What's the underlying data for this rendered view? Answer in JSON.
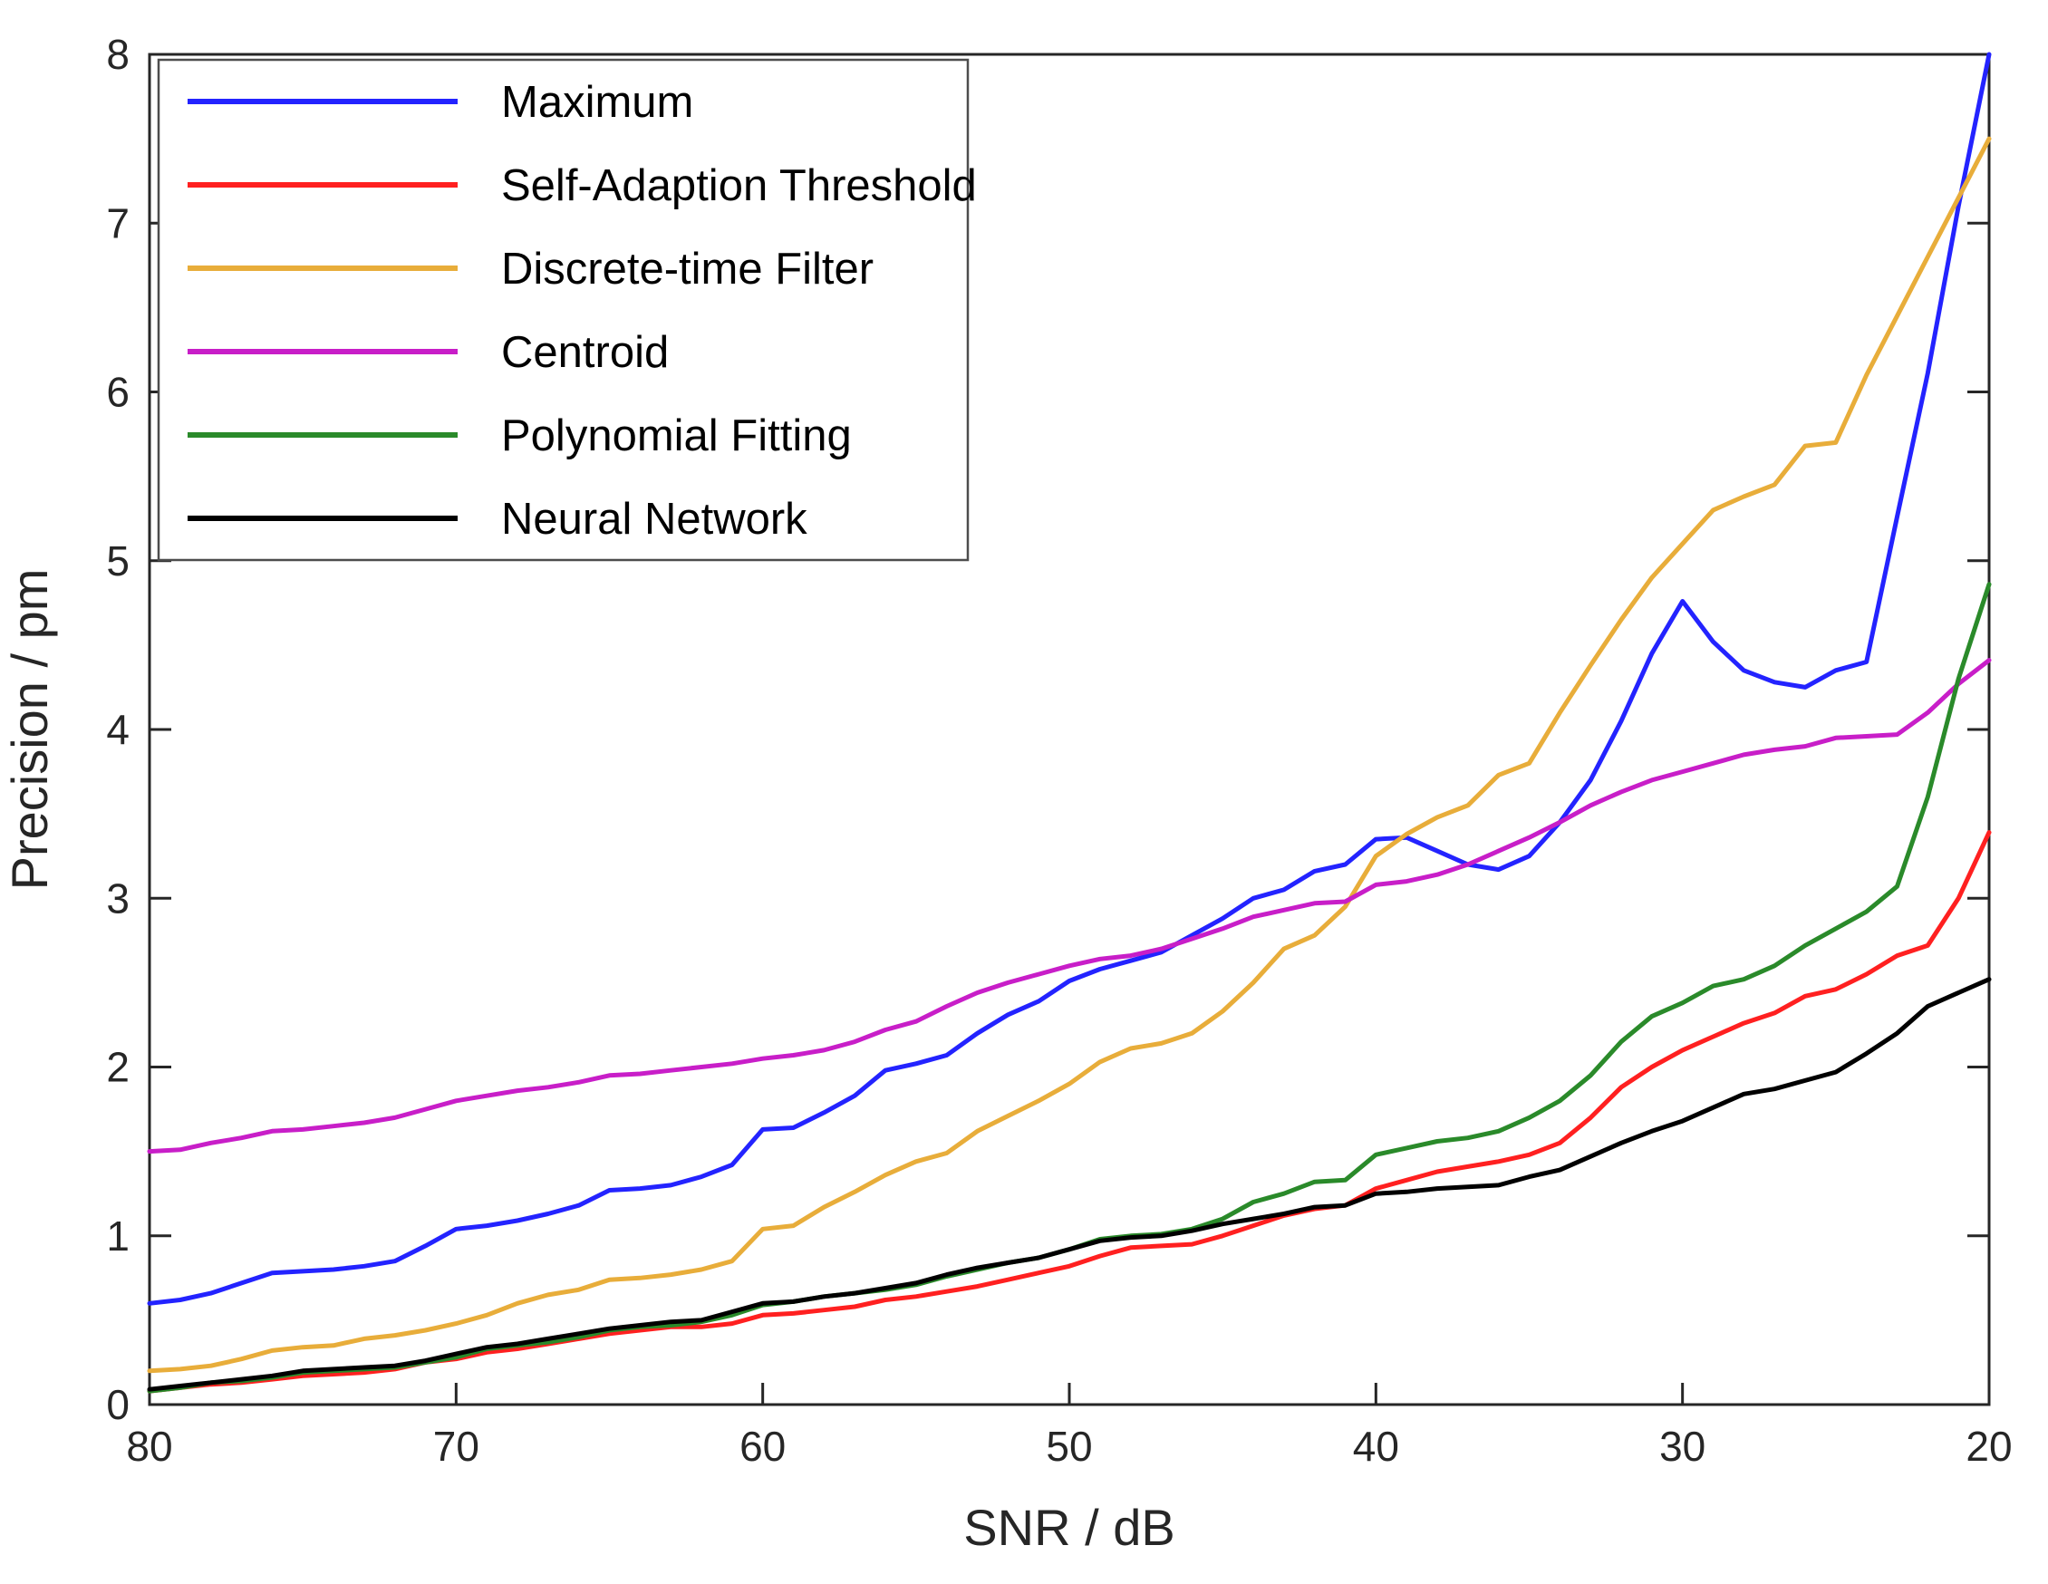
{
  "chart_data": {
    "type": "line",
    "title": "",
    "xlabel": "SNR / dB",
    "ylabel": "Precision / pm",
    "xlim": [
      80,
      20
    ],
    "ylim": [
      0,
      8
    ],
    "x_axis_reversed": true,
    "grid": false,
    "legend_position": "top-left",
    "axis_color": "#262626",
    "x_ticks": [
      80,
      70,
      60,
      50,
      40,
      30,
      20
    ],
    "y_ticks": [
      0,
      1,
      2,
      3,
      4,
      5,
      6,
      7,
      8
    ],
    "x": [
      80,
      79,
      78,
      77,
      76,
      75,
      74,
      73,
      72,
      71,
      70,
      69,
      68,
      67,
      66,
      65,
      64,
      63,
      62,
      61,
      60,
      59,
      58,
      57,
      56,
      55,
      54,
      53,
      52,
      51,
      50,
      49,
      48,
      47,
      46,
      45,
      44,
      43,
      42,
      41,
      40,
      39,
      38,
      37,
      36,
      35,
      34,
      33,
      32,
      31,
      30,
      29,
      28,
      27,
      26,
      25,
      24,
      23,
      22,
      21,
      20
    ],
    "series": [
      {
        "name": "Maximum",
        "color": "#2323ff",
        "values": [
          0.6,
          0.62,
          0.66,
          0.72,
          0.78,
          0.79,
          0.8,
          0.82,
          0.85,
          0.94,
          1.04,
          1.06,
          1.09,
          1.13,
          1.18,
          1.27,
          1.28,
          1.3,
          1.35,
          1.42,
          1.63,
          1.64,
          1.73,
          1.83,
          1.98,
          2.02,
          2.07,
          2.2,
          2.31,
          2.39,
          2.51,
          2.58,
          2.63,
          2.68,
          2.78,
          2.88,
          3.0,
          3.05,
          3.16,
          3.2,
          3.35,
          3.36,
          3.28,
          3.2,
          3.17,
          3.25,
          3.45,
          3.7,
          4.05,
          4.45,
          4.76,
          4.52,
          4.35,
          4.28,
          4.25,
          4.35,
          4.4,
          5.26,
          6.11,
          7.1,
          8.0
        ]
      },
      {
        "name": "Self-Adaption Threshold",
        "color": "#ff2020",
        "values": [
          0.08,
          0.1,
          0.12,
          0.13,
          0.15,
          0.17,
          0.18,
          0.19,
          0.21,
          0.25,
          0.27,
          0.31,
          0.33,
          0.36,
          0.39,
          0.42,
          0.44,
          0.46,
          0.46,
          0.48,
          0.53,
          0.54,
          0.56,
          0.58,
          0.62,
          0.64,
          0.67,
          0.7,
          0.74,
          0.78,
          0.82,
          0.88,
          0.93,
          0.94,
          0.95,
          1.0,
          1.06,
          1.12,
          1.16,
          1.18,
          1.28,
          1.33,
          1.38,
          1.41,
          1.44,
          1.48,
          1.55,
          1.7,
          1.88,
          2.0,
          2.1,
          2.18,
          2.26,
          2.32,
          2.42,
          2.46,
          2.55,
          2.66,
          2.72,
          3.0,
          3.39
        ]
      },
      {
        "name": "Discrete-time Filter",
        "color": "#e8ad3a",
        "values": [
          0.2,
          0.21,
          0.23,
          0.27,
          0.32,
          0.34,
          0.35,
          0.39,
          0.41,
          0.44,
          0.48,
          0.53,
          0.6,
          0.65,
          0.68,
          0.74,
          0.75,
          0.77,
          0.8,
          0.85,
          1.04,
          1.06,
          1.17,
          1.26,
          1.36,
          1.44,
          1.49,
          1.62,
          1.71,
          1.8,
          1.9,
          2.03,
          2.11,
          2.14,
          2.2,
          2.33,
          2.5,
          2.7,
          2.78,
          2.95,
          3.25,
          3.38,
          3.48,
          3.55,
          3.73,
          3.8,
          4.1,
          4.38,
          4.65,
          4.9,
          5.1,
          5.3,
          5.38,
          5.45,
          5.68,
          5.7,
          6.1,
          6.45,
          6.8,
          7.15,
          7.5
        ]
      },
      {
        "name": "Centroid",
        "color": "#c81ec8",
        "values": [
          1.5,
          1.51,
          1.55,
          1.58,
          1.62,
          1.63,
          1.65,
          1.67,
          1.7,
          1.75,
          1.8,
          1.83,
          1.86,
          1.88,
          1.91,
          1.95,
          1.96,
          1.98,
          2.0,
          2.02,
          2.05,
          2.07,
          2.1,
          2.15,
          2.22,
          2.27,
          2.36,
          2.44,
          2.5,
          2.55,
          2.6,
          2.64,
          2.66,
          2.7,
          2.76,
          2.82,
          2.89,
          2.93,
          2.97,
          2.98,
          3.08,
          3.1,
          3.14,
          3.2,
          3.28,
          3.36,
          3.45,
          3.55,
          3.63,
          3.7,
          3.75,
          3.8,
          3.85,
          3.88,
          3.9,
          3.95,
          3.96,
          3.97,
          4.1,
          4.27,
          4.41
        ]
      },
      {
        "name": "Polynomial Fitting",
        "color": "#2a8a2a",
        "values": [
          0.08,
          0.1,
          0.13,
          0.14,
          0.16,
          0.19,
          0.2,
          0.21,
          0.22,
          0.25,
          0.28,
          0.33,
          0.35,
          0.37,
          0.4,
          0.44,
          0.46,
          0.47,
          0.49,
          0.53,
          0.59,
          0.61,
          0.64,
          0.66,
          0.68,
          0.71,
          0.76,
          0.8,
          0.84,
          0.87,
          0.92,
          0.98,
          1.0,
          1.01,
          1.04,
          1.1,
          1.2,
          1.25,
          1.32,
          1.33,
          1.48,
          1.52,
          1.56,
          1.58,
          1.62,
          1.7,
          1.8,
          1.95,
          2.15,
          2.3,
          2.38,
          2.48,
          2.52,
          2.6,
          2.72,
          2.82,
          2.92,
          3.07,
          3.6,
          4.3,
          4.86
        ]
      },
      {
        "name": "Neural Network",
        "color": "#000000",
        "values": [
          0.09,
          0.11,
          0.13,
          0.15,
          0.17,
          0.2,
          0.21,
          0.22,
          0.23,
          0.26,
          0.3,
          0.34,
          0.36,
          0.39,
          0.42,
          0.45,
          0.47,
          0.49,
          0.5,
          0.55,
          0.6,
          0.61,
          0.64,
          0.66,
          0.69,
          0.72,
          0.77,
          0.81,
          0.84,
          0.87,
          0.92,
          0.97,
          0.99,
          1.0,
          1.03,
          1.07,
          1.1,
          1.13,
          1.17,
          1.18,
          1.25,
          1.26,
          1.28,
          1.29,
          1.3,
          1.35,
          1.39,
          1.47,
          1.55,
          1.62,
          1.68,
          1.76,
          1.84,
          1.87,
          1.92,
          1.97,
          2.08,
          2.2,
          2.36,
          2.44,
          2.52
        ]
      }
    ]
  }
}
